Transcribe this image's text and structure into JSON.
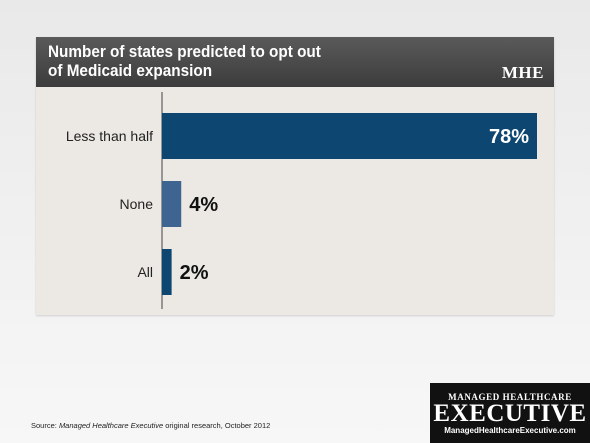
{
  "chart_data": {
    "type": "bar",
    "orientation": "horizontal",
    "title": "Number of states predicted to opt out of Medicaid expansion",
    "categories": [
      "Less than half",
      "None",
      "All"
    ],
    "values": [
      78,
      4,
      2
    ],
    "value_labels": [
      "78%",
      "4%",
      "2%"
    ],
    "unit": "%",
    "xlim": [
      0,
      78
    ],
    "grid": false,
    "legend": "none",
    "colors": {
      "bar_main": "#0d4670",
      "bar_secondary": "#3e6592",
      "value_inside": "#ffffff",
      "value_outside": "#111111",
      "axis": "#444444"
    }
  },
  "header": {
    "title_line1": "Number of states predicted to opt out",
    "title_line2": "of Medicaid expansion",
    "brand": "MHE"
  },
  "footer": {
    "source_prefix": "Source: ",
    "source_italic": "Managed Healthcare Executive",
    "source_suffix": " original research, October 2012"
  },
  "logo": {
    "line1": "MANAGED HEALTHCARE",
    "line2": "EXECUTIVE",
    "line3": "ManagedHealthcareExecutive.com"
  }
}
